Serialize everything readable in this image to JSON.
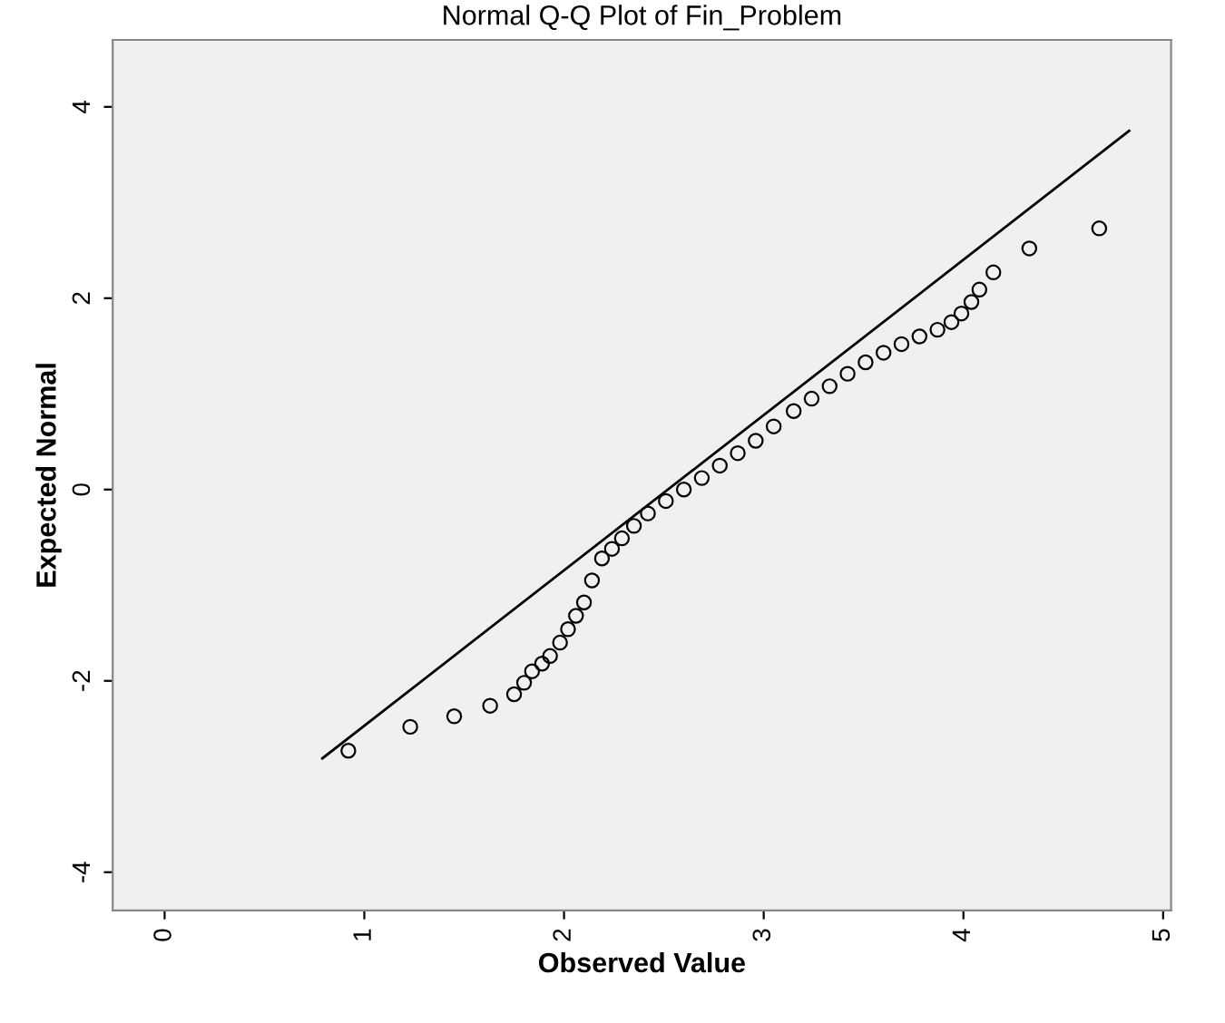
{
  "chart_data": {
    "type": "scatter",
    "title": "Normal Q-Q Plot of Fin_Problem",
    "xlabel": "Observed Value",
    "ylabel": "Expected Normal",
    "xlim": [
      -0.26,
      5.04
    ],
    "ylim": [
      -4.4,
      4.7
    ],
    "xticks": [
      0,
      1,
      2,
      3,
      4,
      5
    ],
    "yticks": [
      -4,
      -2,
      0,
      2,
      4
    ],
    "grid": false,
    "series": [
      {
        "marker": "circle",
        "color": "#000000",
        "x": [
          0.92,
          1.23,
          1.45,
          1.63,
          1.75,
          1.8,
          1.84,
          1.89,
          1.93,
          1.98,
          2.02,
          2.06,
          2.1,
          2.14,
          2.19,
          2.24,
          2.29,
          2.35,
          2.42,
          2.51,
          2.6,
          2.69,
          2.78,
          2.87,
          2.96,
          3.05,
          3.15,
          3.24,
          3.33,
          3.42,
          3.51,
          3.6,
          3.69,
          3.78,
          3.87,
          3.94,
          3.99,
          4.04,
          4.08,
          4.15,
          4.33,
          4.68
        ],
        "values": [
          -2.73,
          -2.48,
          -2.37,
          -2.26,
          -2.14,
          -2.02,
          -1.9,
          -1.82,
          -1.74,
          -1.6,
          -1.46,
          -1.32,
          -1.18,
          -0.95,
          -0.72,
          -0.62,
          -0.51,
          -0.38,
          -0.25,
          -0.12,
          0.0,
          0.12,
          0.25,
          0.38,
          0.51,
          0.66,
          0.82,
          0.95,
          1.08,
          1.21,
          1.33,
          1.43,
          1.52,
          1.6,
          1.67,
          1.75,
          1.84,
          1.96,
          2.09,
          2.27,
          2.52,
          2.73
        ]
      },
      {
        "type": "line",
        "color": "#000000",
        "x": [
          0.79,
          4.83
        ],
        "values": [
          -2.81,
          3.75
        ]
      }
    ]
  }
}
